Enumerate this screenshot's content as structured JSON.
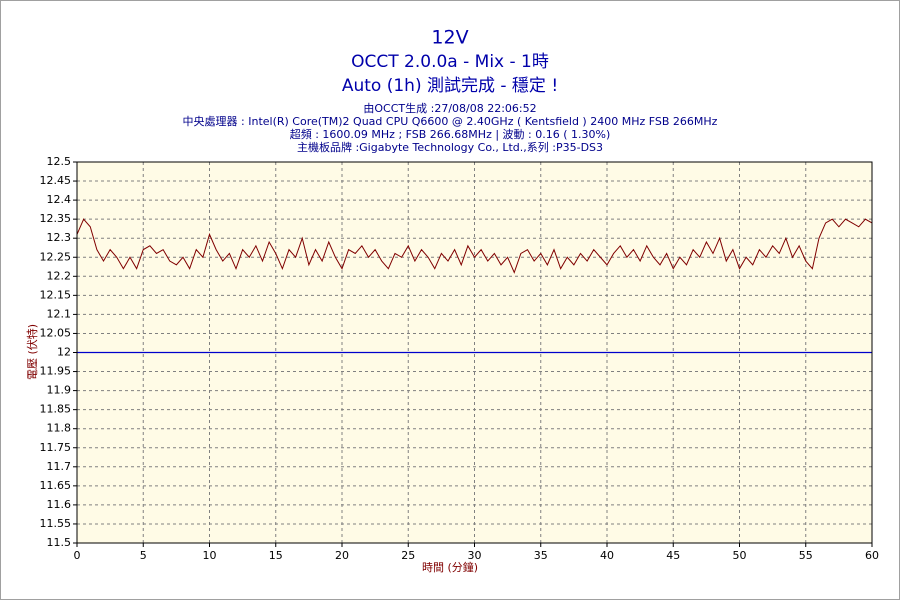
{
  "chart_data": {
    "type": "line",
    "title": "12V",
    "subtitle": "OCCT 2.0.0a - Mix - 1時",
    "status": "Auto (1h) 測試完成 - 穩定 !",
    "info": [
      "由OCCT生成 :27/08/08 22:06:52",
      "中央處理器 : Intel(R) Core(TM)2 Quad CPU Q6600 @ 2.40GHz ( Kentsfield ) 2400 MHz FSB 266MHz",
      "超頻 : 1600.09 MHz ; FSB 266.68MHz | 波動 : 0.16 ( 1.30%)",
      "主機板品牌 :Gigabyte Technology Co., Ltd.,系列 :P35-DS3"
    ],
    "xlabel": "時間 (分鐘)",
    "ylabel": "電壓 (伏特)",
    "xlim": [
      0,
      60
    ],
    "xticks": [
      0,
      5,
      10,
      15,
      20,
      25,
      30,
      35,
      40,
      45,
      50,
      55,
      60
    ],
    "ylim": [
      11.5,
      12.5
    ],
    "yticks": [
      11.5,
      11.55,
      11.6,
      11.65,
      11.7,
      11.75,
      11.8,
      11.85,
      11.9,
      11.95,
      12,
      12.05,
      12.1,
      12.15,
      12.2,
      12.25,
      12.3,
      12.35,
      12.4,
      12.45,
      12.5
    ],
    "grid": true,
    "hline": 12,
    "hline_color": "#0000cc",
    "x": [
      0,
      0.5,
      1,
      1.5,
      2,
      2.5,
      3,
      3.5,
      4,
      4.5,
      5,
      5.5,
      6,
      6.5,
      7,
      7.5,
      8,
      8.5,
      9,
      9.5,
      10,
      10.5,
      11,
      11.5,
      12,
      12.5,
      13,
      13.5,
      14,
      14.5,
      15,
      15.5,
      16,
      16.5,
      17,
      17.5,
      18,
      18.5,
      19,
      19.5,
      20,
      20.5,
      21,
      21.5,
      22,
      22.5,
      23,
      23.5,
      24,
      24.5,
      25,
      25.5,
      26,
      26.5,
      27,
      27.5,
      28,
      28.5,
      29,
      29.5,
      30,
      30.5,
      31,
      31.5,
      32,
      32.5,
      33,
      33.5,
      34,
      34.5,
      35,
      35.5,
      36,
      36.5,
      37,
      37.5,
      38,
      38.5,
      39,
      39.5,
      40,
      40.5,
      41,
      41.5,
      42,
      42.5,
      43,
      43.5,
      44,
      44.5,
      45,
      45.5,
      46,
      46.5,
      47,
      47.5,
      48,
      48.5,
      49,
      49.5,
      50,
      50.5,
      51,
      51.5,
      52,
      52.5,
      53,
      53.5,
      54,
      54.5,
      55,
      55.5,
      56,
      56.5,
      57,
      57.5,
      58,
      58.5,
      59,
      59.5,
      60
    ],
    "series": [
      {
        "color": "#800000",
        "values": [
          12.31,
          12.35,
          12.33,
          12.27,
          12.24,
          12.27,
          12.25,
          12.22,
          12.25,
          12.22,
          12.27,
          12.28,
          12.26,
          12.27,
          12.24,
          12.23,
          12.25,
          12.22,
          12.27,
          12.25,
          12.31,
          12.27,
          12.24,
          12.26,
          12.22,
          12.27,
          12.25,
          12.28,
          12.24,
          12.29,
          12.26,
          12.22,
          12.27,
          12.25,
          12.3,
          12.23,
          12.27,
          12.24,
          12.29,
          12.25,
          12.22,
          12.27,
          12.26,
          12.28,
          12.25,
          12.27,
          12.24,
          12.22,
          12.26,
          12.25,
          12.28,
          12.24,
          12.27,
          12.25,
          12.22,
          12.26,
          12.24,
          12.27,
          12.23,
          12.28,
          12.25,
          12.27,
          12.24,
          12.26,
          12.23,
          12.25,
          12.21,
          12.26,
          12.27,
          12.24,
          12.26,
          12.23,
          12.27,
          12.22,
          12.25,
          12.23,
          12.26,
          12.24,
          12.27,
          12.25,
          12.23,
          12.26,
          12.28,
          12.25,
          12.27,
          12.24,
          12.28,
          12.25,
          12.23,
          12.26,
          12.22,
          12.25,
          12.23,
          12.27,
          12.25,
          12.29,
          12.26,
          12.3,
          12.24,
          12.27,
          12.22,
          12.25,
          12.23,
          12.27,
          12.25,
          12.28,
          12.26,
          12.3,
          12.25,
          12.28,
          12.24,
          12.22,
          12.3,
          12.34,
          12.35,
          12.33,
          12.35,
          12.34,
          12.33,
          12.35,
          12.34
        ]
      }
    ]
  }
}
